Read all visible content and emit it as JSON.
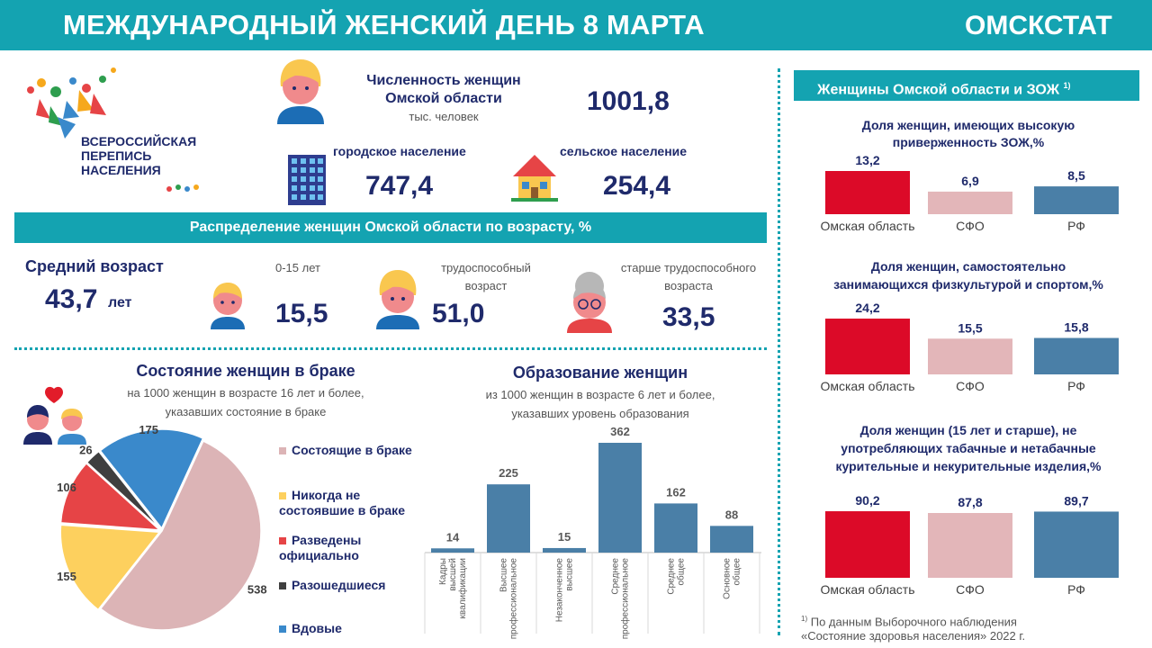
{
  "header": {
    "title": "МЕЖДУНАРОДНЫЙ ЖЕНСКИЙ ДЕНЬ 8 МАРТА",
    "org": "ОМСКСТАТ"
  },
  "logo": {
    "line1": "ВСЕРОССИЙСКАЯ",
    "line2": "ПЕРЕПИСЬ",
    "line3": "НАСЕЛЕНИЯ"
  },
  "population": {
    "title_line1": "Численность женщин",
    "title_line2": "Омской области",
    "unit": "тыс. человек",
    "total": "1001,8",
    "urban_label": "городское население",
    "urban_value": "747,4",
    "rural_label": "сельское население",
    "rural_value": "254,4"
  },
  "age": {
    "banner": "Распределение женщин Омской области по возрасту, %",
    "avg_label": "Средний возраст",
    "avg_value": "43,7",
    "avg_unit": "лет",
    "groups": [
      {
        "label": "0-15 лет",
        "value": "15,5"
      },
      {
        "label_line1": "трудоспособный",
        "label_line2": "возраст",
        "value": "51,0"
      },
      {
        "label_line1": "старше трудоспособного",
        "label_line2": "возраста",
        "value": "33,5"
      }
    ]
  },
  "marriage": {
    "title": "Состояние женщин в браке",
    "sub1": "на 1000 женщин в возрасте 16 лет и более,",
    "sub2": "указавших состояние в браке",
    "legend": [
      {
        "label_line1": "Состоящие в браке",
        "label_line2": "",
        "color": "#dcb4b6"
      },
      {
        "label_line1": "Никогда не",
        "label_line2": "состоявшие в браке",
        "color": "#fdd05e"
      },
      {
        "label_line1": "Разведены",
        "label_line2": "официально",
        "color": "#e64446"
      },
      {
        "label_line1": "Разошедшиеся",
        "label_line2": "",
        "color": "#3f3f3f"
      },
      {
        "label_line1": "Вдовые",
        "label_line2": "",
        "color": "#3a89cb"
      }
    ]
  },
  "education": {
    "title": "Образование женщин",
    "sub1": "из 1000 женщин в возрасте 6 лет и более,",
    "sub2": "указавших уровень образования"
  },
  "zoj": {
    "banner": "Женщины Омской области и ЗОЖ",
    "banner_sup": "1)",
    "footnote_sup": "1)",
    "footnote_line1": "По данным Выборочного наблюдения",
    "footnote_line2": "«Состояние здоровья населения» 2022 г.",
    "charts": [
      {
        "title_line1": "Доля женщин, имеющих высокую",
        "title_line2": "приверженность  ЗОЖ,%"
      },
      {
        "title_line1": "Доля женщин, самостоятельно",
        "title_line2": "занимающихся физкультурой и спортом,%"
      },
      {
        "title_line1": "Доля женщин (15 лет и старше), не",
        "title_line2": "употребляющих табачные и нетабачные",
        "title_line3": "курительные и некурительные изделия,%"
      }
    ]
  },
  "chart_data": [
    {
      "type": "pie",
      "categories": [
        "Состоящие в браке",
        "Никогда не состоявшие в браке",
        "Разведены официально",
        "Разошедшиеся",
        "Вдовые"
      ],
      "values": [
        538,
        155,
        106,
        26,
        175
      ],
      "colors": [
        "#dcb4b6",
        "#fdd05e",
        "#e64446",
        "#3f3f3f",
        "#3a89cb"
      ],
      "title": "Состояние женщин в браке"
    },
    {
      "type": "bar",
      "categories": [
        "Кадры высшей квалификации",
        "Высшее профессиональное",
        "Незаконченное высшее",
        "Среднее профессиональное",
        "Среднее общее",
        "Основное общее"
      ],
      "values": [
        14,
        225,
        15,
        362,
        162,
        88
      ],
      "color": "#4a7fa7",
      "title": "Образование женщин"
    },
    {
      "type": "bar",
      "categories": [
        "Омская область",
        "СФО",
        "РФ"
      ],
      "values": [
        13.2,
        6.9,
        8.5
      ],
      "labels": [
        "13,2",
        "6,9",
        "8,5"
      ],
      "colors": [
        "#dc0a28",
        "#e3b6b9",
        "#4a7fa7"
      ],
      "title": "Доля женщин, имеющих высокую приверженность  ЗОЖ,%"
    },
    {
      "type": "bar",
      "categories": [
        "Омская область",
        "СФО",
        "РФ"
      ],
      "values": [
        24.2,
        15.5,
        15.8
      ],
      "labels": [
        "24,2",
        "15,5",
        "15,8"
      ],
      "colors": [
        "#dc0a28",
        "#e3b6b9",
        "#4a7fa7"
      ],
      "title": "Доля женщин, самостоятельно занимающихся физкультурой и спортом,%"
    },
    {
      "type": "bar",
      "categories": [
        "Омская область",
        "СФО",
        "РФ"
      ],
      "values": [
        90.2,
        87.8,
        89.7
      ],
      "labels": [
        "90,2",
        "87,8",
        "89,7"
      ],
      "colors": [
        "#dc0a28",
        "#e3b6b9",
        "#4a7fa7"
      ],
      "title": "Доля женщин (15 лет и старше), не употребляющих табачные и нетабачные курительные и некурительные изделия,%"
    }
  ]
}
